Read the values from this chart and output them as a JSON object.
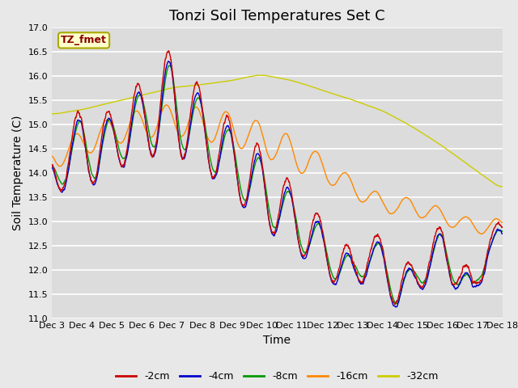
{
  "title": "Tonzi Soil Temperatures Set C",
  "xlabel": "Time",
  "ylabel": "Soil Temperature (C)",
  "ylim": [
    11.0,
    17.0
  ],
  "yticks": [
    11.0,
    11.5,
    12.0,
    12.5,
    13.0,
    13.5,
    14.0,
    14.5,
    15.0,
    15.5,
    16.0,
    16.5,
    17.0
  ],
  "xtick_labels": [
    "Dec 3",
    "Dec 4",
    "Dec 5",
    "Dec 6",
    "Dec 7",
    "Dec 8",
    "Dec 9",
    "Dec 10",
    "Dec 11",
    "Dec 12",
    "Dec 13",
    "Dec 14",
    "Dec 15",
    "Dec 16",
    "Dec 17",
    "Dec 18"
  ],
  "legend_label": "TZ_fmet",
  "legend_box_color": "#ffffcc",
  "legend_box_edge": "#aaa800",
  "series_colors": {
    "-2cm": "#cc0000",
    "-4cm": "#0000cc",
    "-8cm": "#009900",
    "-16cm": "#ff8800",
    "-32cm": "#cccc00"
  },
  "background_color": "#dcdcdc",
  "grid_color": "#ffffff",
  "title_fontsize": 13,
  "axis_fontsize": 10,
  "tick_fontsize": 8,
  "fig_width": 6.4,
  "fig_height": 4.8,
  "dpi": 100
}
